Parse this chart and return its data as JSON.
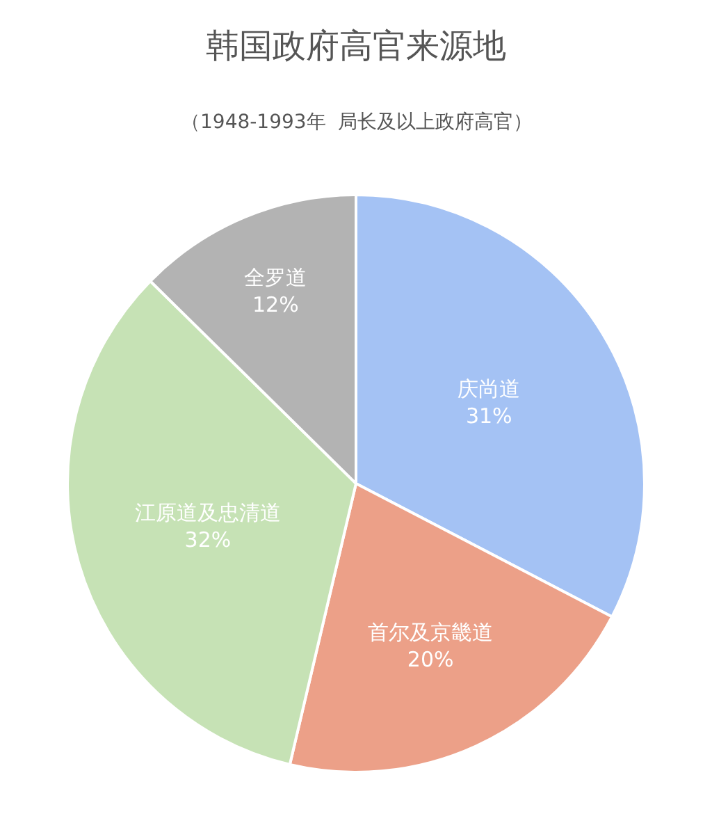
{
  "chart_data": {
    "type": "pie",
    "title": "韩国政府高官来源地",
    "subtitle": "（1948-1993年  局长及以上政府高官）",
    "categories": [
      "庆尚道",
      "首尔及京畿道",
      "江原道及忠清道",
      "全罗道"
    ],
    "values": [
      31,
      20,
      32,
      12
    ],
    "value_labels": [
      "31%",
      "20%",
      "32%",
      "12%"
    ],
    "colors": [
      "#a4c2f4",
      "#eca088",
      "#c6e2b5",
      "#b3b3b3"
    ],
    "legend": false
  }
}
